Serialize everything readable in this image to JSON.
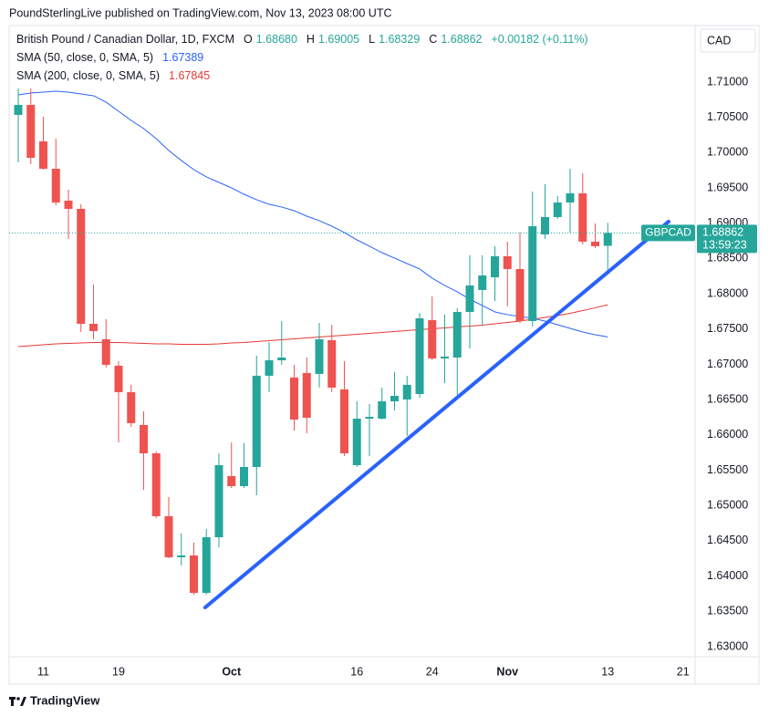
{
  "header": "PoundSterlingLive published on TradingView.com, Nov 13, 2023 08:00 UTC",
  "footer": "TradingView",
  "chart_data": {
    "type": "candlestick",
    "title": "British Pound / Canadian Dollar, 1D, FXCM",
    "symbol": "GBPCAD",
    "currency": "CAD",
    "ohlc_legend": [
      {
        "key": "O",
        "label": "1.68680"
      },
      {
        "key": "H",
        "label": "1.69005"
      },
      {
        "key": "L",
        "label": "1.68329"
      },
      {
        "key": "C",
        "label": "1.68862"
      }
    ],
    "change": "+0.00182 (+0.11%)",
    "last_price_label": "1.68862",
    "countdown": "13:59:23",
    "up_color": "#26a69a",
    "down_color": "#ef5350",
    "x": [
      0,
      1,
      2,
      3,
      4,
      5,
      6,
      7,
      8,
      9,
      10,
      11,
      12,
      13,
      14,
      15,
      16,
      17,
      18,
      19,
      20,
      21,
      22,
      23,
      24,
      25,
      26,
      27,
      28,
      29,
      30,
      31,
      32,
      33,
      34,
      35,
      36,
      37,
      38,
      39,
      40,
      41,
      42,
      43,
      44,
      45,
      46,
      47
    ],
    "xlim": [
      -0.727,
      53.964
    ],
    "xticks": [
      {
        "value": 2,
        "label": "11"
      },
      {
        "value": 8,
        "label": "19"
      },
      {
        "value": 17,
        "label": "Oct"
      },
      {
        "value": 27,
        "label": "16"
      },
      {
        "value": 33,
        "label": "24"
      },
      {
        "value": 39,
        "label": "Nov"
      },
      {
        "value": 47,
        "label": "13"
      },
      {
        "value": 53,
        "label": "21"
      }
    ],
    "ylim": [
      1.62858,
      1.71801
    ],
    "yticks": [
      {
        "value": 1.63,
        "label": "1.63000"
      },
      {
        "value": 1.635,
        "label": "1.63500"
      },
      {
        "value": 1.64,
        "label": "1.64000"
      },
      {
        "value": 1.645,
        "label": "1.64500"
      },
      {
        "value": 1.65,
        "label": "1.65000"
      },
      {
        "value": 1.655,
        "label": "1.65500"
      },
      {
        "value": 1.66,
        "label": "1.66000"
      },
      {
        "value": 1.665,
        "label": "1.66500"
      },
      {
        "value": 1.67,
        "label": "1.67000"
      },
      {
        "value": 1.675,
        "label": "1.67500"
      },
      {
        "value": 1.68,
        "label": "1.68000"
      },
      {
        "value": 1.685,
        "label": "1.68500"
      },
      {
        "value": 1.69,
        "label": "1.69000"
      },
      {
        "value": 1.695,
        "label": "1.69500"
      },
      {
        "value": 1.7,
        "label": "1.70000"
      },
      {
        "value": 1.705,
        "label": "1.70500"
      },
      {
        "value": 1.71,
        "label": "1.71000"
      }
    ],
    "grid": false,
    "open": [
      1.70535,
      1.70677,
      1.7016,
      1.69772,
      1.6932,
      1.69204,
      1.67575,
      1.67356,
      1.66981,
      1.66606,
      1.66141,
      1.6574,
      1.64849,
      1.64267,
      1.64293,
      1.63763,
      1.64551,
      1.65417,
      1.65275,
      1.65546,
      1.66839,
      1.67058,
      1.66813,
      1.66878,
      1.66865,
      1.67343,
      1.66645,
      1.65572,
      1.66231,
      1.66231,
      1.66477,
      1.66503,
      1.6658,
      1.67627,
      1.67084,
      1.67097,
      1.67743,
      1.68054,
      1.68234,
      1.68532,
      1.68351,
      1.67614,
      1.68842,
      1.69087,
      1.69294,
      1.69423,
      1.68739,
      1.6868
    ],
    "high": [
      1.7091,
      1.7091,
      1.70509,
      1.70199,
      1.69475,
      1.69268,
      1.68131,
      1.6764,
      1.67046,
      1.6671,
      1.66335,
      1.65766,
      1.6512,
      1.64603,
      1.64474,
      1.64668,
      1.6574,
      1.65895,
      1.65882,
      1.67123,
      1.67317,
      1.67614,
      1.66994,
      1.67097,
      1.67588,
      1.67562,
      1.67046,
      1.66477,
      1.66438,
      1.66671,
      1.6689,
      1.66839,
      1.6773,
      1.67963,
      1.67705,
      1.67795,
      1.68545,
      1.68545,
      1.68674,
      1.68738,
      1.68868,
      1.69449,
      1.69553,
      1.69385,
      1.69772,
      1.69708,
      1.68997,
      1.69005
    ],
    "low": [
      1.69863,
      1.69837,
      1.69759,
      1.69255,
      1.68777,
      1.67459,
      1.67356,
      1.66955,
      1.65895,
      1.66115,
      1.65223,
      1.64823,
      1.64254,
      1.64151,
      1.63737,
      1.63737,
      1.64409,
      1.65249,
      1.65249,
      1.65146,
      1.66606,
      1.66994,
      1.66063,
      1.66025,
      1.66671,
      1.66606,
      1.65702,
      1.65546,
      1.65702,
      1.66218,
      1.66348,
      1.65986,
      1.66529,
      1.67058,
      1.66735,
      1.66567,
      1.67226,
      1.6755,
      1.67898,
      1.67821,
      1.67588,
      1.67537,
      1.68777,
      1.69062,
      1.68868,
      1.687,
      1.68648,
      1.68329
    ],
    "close": [
      1.70677,
      1.69927,
      1.69772,
      1.69294,
      1.69204,
      1.67575,
      1.67472,
      1.66994,
      1.66606,
      1.66167,
      1.6574,
      1.64849,
      1.64267,
      1.64293,
      1.63763,
      1.64551,
      1.65572,
      1.65275,
      1.65546,
      1.66839,
      1.67058,
      1.67097,
      1.66218,
      1.66244,
      1.67356,
      1.66671,
      1.6574,
      1.66231,
      1.66257,
      1.66477,
      1.66554,
      1.6671,
      1.67653,
      1.67084,
      1.6711,
      1.67743,
      1.68118,
      1.6826,
      1.68532,
      1.68351,
      1.67614,
      1.68958,
      1.69087,
      1.69294,
      1.69423,
      1.68739,
      1.68674,
      1.68862
    ],
    "overlays": [
      {
        "type": "line",
        "name": "SMA (50, close, 0, SMA, 5)",
        "color": "#2962ff",
        "value_label": "1.67389",
        "values": [
          1.70819,
          1.70845,
          1.70858,
          1.70871,
          1.70858,
          1.70832,
          1.70806,
          1.70716,
          1.70586,
          1.70457,
          1.70341,
          1.70199,
          1.70031,
          1.69889,
          1.69759,
          1.69656,
          1.69578,
          1.69501,
          1.6941,
          1.69333,
          1.69268,
          1.6923,
          1.69178,
          1.691,
          1.69036,
          1.68958,
          1.68868,
          1.68764,
          1.68674,
          1.68583,
          1.68506,
          1.68428,
          1.68351,
          1.68222,
          1.68118,
          1.68028,
          1.67924,
          1.67834,
          1.67743,
          1.67705,
          1.67679,
          1.67653,
          1.67614,
          1.67562,
          1.67511,
          1.67459,
          1.6742,
          1.67389
        ]
      },
      {
        "type": "line",
        "name": "SMA (200, close, 0, SMA, 5)",
        "color": "#e53935",
        "value_label": "1.67845",
        "values": [
          1.67252,
          1.67265,
          1.67278,
          1.67291,
          1.67297,
          1.67304,
          1.6731,
          1.6731,
          1.6731,
          1.67304,
          1.67297,
          1.67291,
          1.67291,
          1.67284,
          1.67284,
          1.67284,
          1.67291,
          1.67304,
          1.6731,
          1.67323,
          1.67336,
          1.67349,
          1.67362,
          1.67375,
          1.67388,
          1.67401,
          1.67414,
          1.67427,
          1.6744,
          1.67453,
          1.67466,
          1.67479,
          1.67492,
          1.67505,
          1.67517,
          1.6753,
          1.67543,
          1.67556,
          1.67575,
          1.67595,
          1.67614,
          1.6764,
          1.67666,
          1.67692,
          1.67724,
          1.67763,
          1.67802,
          1.67845
        ]
      }
    ],
    "trendline": {
      "x": [
        14.9,
        51.85
      ],
      "y": [
        1.63556,
        1.69023
      ],
      "color": "#2962ff"
    }
  }
}
